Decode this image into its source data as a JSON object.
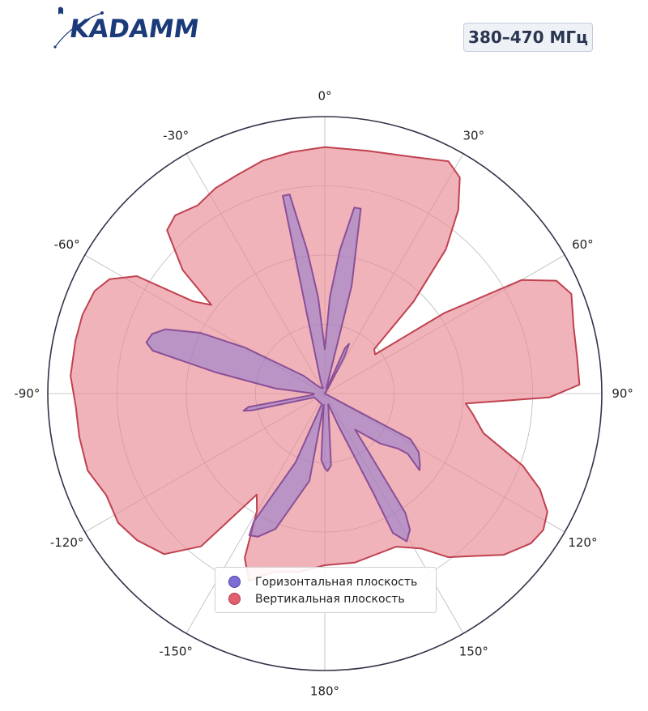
{
  "header": {
    "logo_text": "KADAMM",
    "frequency_badge": "380–470 МГц"
  },
  "colors": {
    "horizontal_fill": "#7b6fd6",
    "horizontal_line": "#8a4f98",
    "vertical_fill": "#e88b94",
    "vertical_line": "#c0414f",
    "logo": "#1b3a7a"
  },
  "chart_data": {
    "type": "polar",
    "angle_direction": "clockwise",
    "zero_location": "top",
    "radial_range": [
      0,
      1
    ],
    "grid": true,
    "angle_ticks": [
      0,
      30,
      60,
      90,
      120,
      150,
      180,
      -150,
      -120,
      -90,
      -60,
      -30
    ],
    "angle_tick_labels": [
      "0°",
      "30°",
      "60°",
      "90°",
      "120°",
      "150°",
      "180°",
      "-150°",
      "-120°",
      "-90°",
      "-60°",
      "-30°"
    ],
    "legend_position": "bottom-center",
    "series": [
      {
        "name": "Вертикальная плоскость",
        "points": [
          [
            0,
            0.89
          ],
          [
            10,
            0.89
          ],
          [
            20,
            0.91
          ],
          [
            28,
            0.95
          ],
          [
            32,
            0.92
          ],
          [
            36,
            0.82
          ],
          [
            40,
            0.68
          ],
          [
            44,
            0.46
          ],
          [
            48,
            0.24
          ],
          [
            52,
            0.23
          ],
          [
            56,
            0.52
          ],
          [
            60,
            0.82
          ],
          [
            64,
            0.93
          ],
          [
            68,
            0.96
          ],
          [
            75,
            0.93
          ],
          [
            82,
            0.92
          ],
          [
            88,
            0.92
          ],
          [
            91,
            0.81
          ],
          [
            94,
            0.51
          ],
          [
            98,
            0.54
          ],
          [
            104,
            0.59
          ],
          [
            110,
            0.76
          ],
          [
            114,
            0.85
          ],
          [
            118,
            0.91
          ],
          [
            122,
            0.93
          ],
          [
            126,
            0.92
          ],
          [
            132,
            0.87
          ],
          [
            138,
            0.79
          ],
          [
            143,
            0.74
          ],
          [
            148,
            0.66
          ],
          [
            155,
            0.61
          ],
          [
            163,
            0.61
          ],
          [
            170,
            0.62
          ],
          [
            180,
            0.62
          ],
          [
            188,
            0.65
          ],
          [
            196,
            0.67
          ],
          [
            202,
            0.73
          ],
          [
            206,
            0.66
          ],
          [
            210,
            0.49
          ],
          [
            214,
            0.44
          ],
          [
            219,
            0.71
          ],
          [
            225,
            0.82
          ],
          [
            232,
            0.86
          ],
          [
            238,
            0.88
          ],
          [
            245,
            0.87
          ],
          [
            252,
            0.9
          ],
          [
            260,
            0.9
          ],
          [
            267,
            0.9
          ],
          [
            274,
            0.92
          ],
          [
            282,
            0.92
          ],
          [
            288,
            0.92
          ],
          [
            294,
            0.91
          ],
          [
            298,
            0.88
          ],
          [
            302,
            0.8
          ],
          [
            305,
            0.58
          ],
          [
            308,
            0.52
          ],
          [
            311,
            0.68
          ],
          [
            316,
            0.82
          ],
          [
            320,
            0.84
          ],
          [
            326,
            0.82
          ],
          [
            332,
            0.84
          ],
          [
            338,
            0.85
          ],
          [
            345,
            0.87
          ],
          [
            352,
            0.88
          ]
        ]
      },
      {
        "name": "Горизонтальная плоскость",
        "points": [
          [
            -18,
            0.05
          ],
          [
            -12,
            0.73
          ],
          [
            -10,
            0.73
          ],
          [
            -7,
            0.52
          ],
          [
            -4,
            0.35
          ],
          [
            0,
            0.16
          ],
          [
            3,
            0.35
          ],
          [
            6,
            0.52
          ],
          [
            9,
            0.68
          ],
          [
            11,
            0.68
          ],
          [
            14,
            0.4
          ],
          [
            16,
            0.02
          ],
          [
            22,
            0.02
          ],
          [
            24,
            0.18
          ],
          [
            26,
            0.2
          ],
          [
            28,
            0.15
          ],
          [
            32,
            0.02
          ],
          [
            36,
            0.0
          ],
          [
            80,
            0.0
          ],
          [
            110,
            0.0
          ],
          [
            118,
            0.35
          ],
          [
            122,
            0.4
          ],
          [
            127,
            0.43
          ],
          [
            129,
            0.44
          ],
          [
            126,
            0.37
          ],
          [
            127,
            0.33
          ],
          [
            132,
            0.27
          ],
          [
            140,
            0.17
          ],
          [
            146,
            0.52
          ],
          [
            148,
            0.58
          ],
          [
            151,
            0.61
          ],
          [
            154,
            0.56
          ],
          [
            154,
            0.4
          ],
          [
            157,
            0.13
          ],
          [
            162,
            0.04
          ],
          [
            175,
            0.26
          ],
          [
            178,
            0.28
          ],
          [
            180,
            0.27
          ],
          [
            183,
            0.24
          ],
          [
            186,
            0.04
          ],
          [
            190,
            0.32
          ],
          [
            200,
            0.52
          ],
          [
            205,
            0.57
          ],
          [
            208,
            0.58
          ],
          [
            209,
            0.53
          ],
          [
            203,
            0.27
          ],
          [
            196,
            0.04
          ],
          [
            250,
            0.04
          ],
          [
            257,
            0.27
          ],
          [
            258,
            0.3
          ],
          [
            260,
            0.28
          ],
          [
            264,
            0.04
          ],
          [
            270,
            0.04
          ],
          [
            276,
            0.18
          ],
          [
            281,
            0.4
          ],
          [
            284,
            0.64
          ],
          [
            286,
            0.67
          ],
          [
            289,
            0.66
          ],
          [
            292,
            0.62
          ],
          [
            296,
            0.5
          ],
          [
            300,
            0.33
          ],
          [
            310,
            0.1
          ],
          [
            320,
            0.03
          ],
          [
            340,
            0.02
          ]
        ]
      }
    ]
  },
  "legend": {
    "horizontal_label": "Горизонтальная плоскость",
    "vertical_label": "Вертикальная плоскость"
  }
}
